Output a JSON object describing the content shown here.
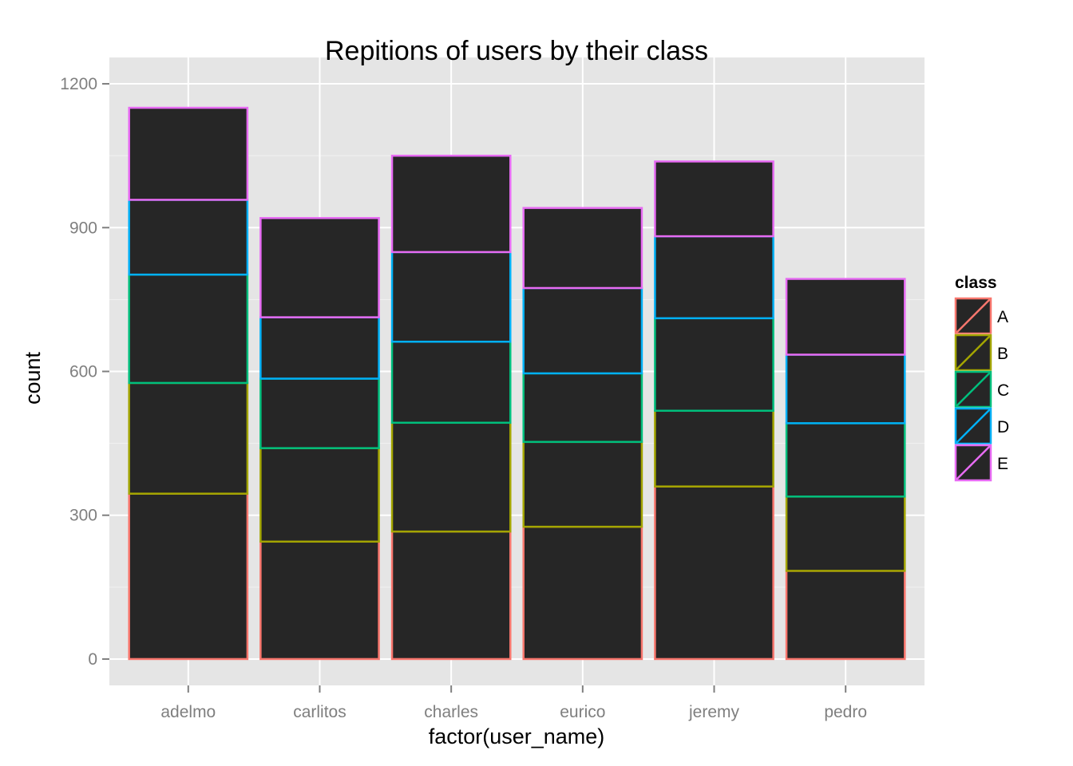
{
  "chart_data": {
    "type": "bar",
    "stacked": true,
    "title": "Repitions of users by their class",
    "xlabel": "factor(user_name)",
    "ylabel": "count",
    "categories": [
      "adelmo",
      "carlitos",
      "charles",
      "eurico",
      "jeremy",
      "pedro"
    ],
    "series": [
      {
        "name": "A",
        "color": "#F8766D",
        "values": [
          345,
          245,
          266,
          276,
          360,
          184
        ]
      },
      {
        "name": "B",
        "color": "#A3A500",
        "values": [
          231,
          195,
          227,
          177,
          158,
          155
        ]
      },
      {
        "name": "C",
        "color": "#00BF7D",
        "values": [
          226,
          145,
          169,
          143,
          193,
          153
        ]
      },
      {
        "name": "D",
        "color": "#00B0F6",
        "values": [
          156,
          128,
          187,
          178,
          171,
          143
        ]
      },
      {
        "name": "E",
        "color": "#E76BF3",
        "values": [
          192,
          207,
          201,
          167,
          156,
          158
        ]
      }
    ],
    "ylim": [
      -55,
      1255
    ],
    "yticks": [
      0,
      300,
      600,
      900,
      1200
    ],
    "ytick_labels": [
      "0",
      "300",
      "600",
      "900",
      "1200"
    ],
    "bar_fill": "#262626",
    "panel_background": "#E5E5E5",
    "grid_color": "#FFFFFF",
    "legend": {
      "title": "class",
      "position": "right"
    }
  }
}
